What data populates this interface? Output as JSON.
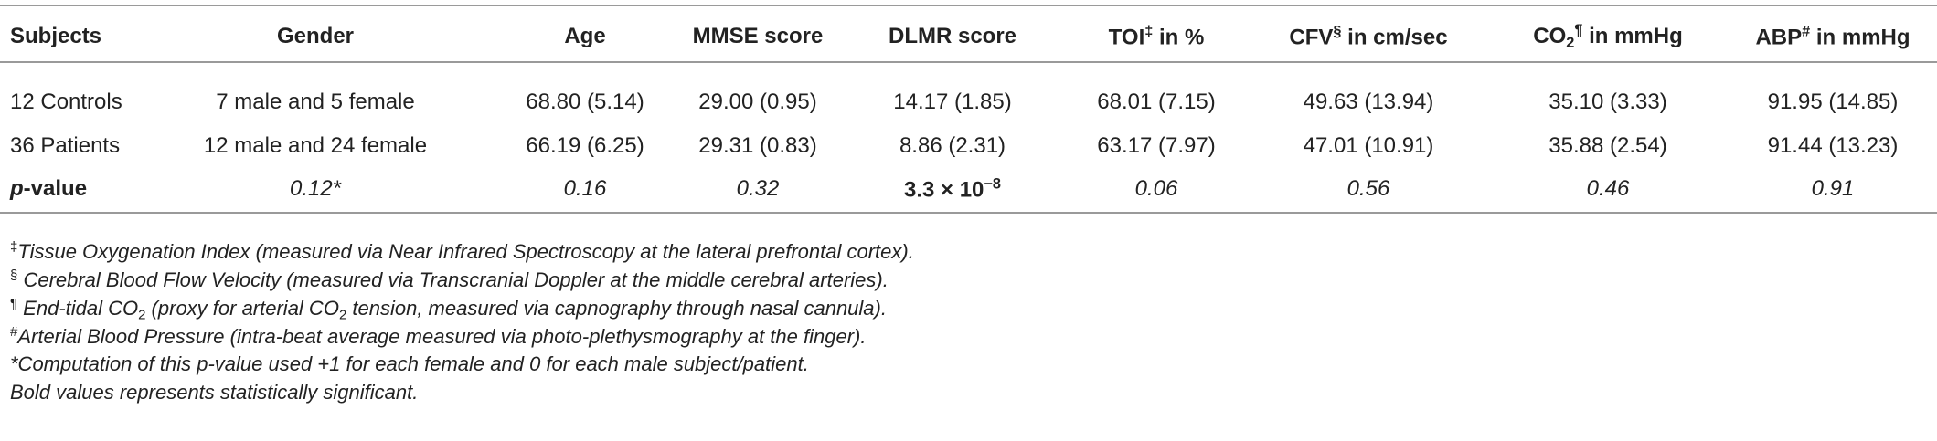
{
  "table": {
    "header": [
      [
        {
          "text": "Subjects"
        }
      ],
      [
        {
          "text": "Gender"
        }
      ],
      [
        {
          "text": "Age"
        }
      ],
      [
        {
          "text": "MMSE score"
        }
      ],
      [
        {
          "text": "DLMR score"
        }
      ],
      [
        {
          "text": "TOI"
        },
        {
          "text": "‡",
          "format": [
            "sup"
          ]
        },
        {
          "text": " in %"
        }
      ],
      [
        {
          "text": "CFV"
        },
        {
          "text": "§",
          "format": [
            "sup"
          ]
        },
        {
          "text": " in cm/sec"
        }
      ],
      [
        {
          "text": "CO"
        },
        {
          "text": "2",
          "format": [
            "sub"
          ]
        },
        {
          "text": "¶",
          "format": [
            "sup"
          ]
        },
        {
          "text": " in mmHg"
        }
      ],
      [
        {
          "text": "ABP"
        },
        {
          "text": "#",
          "format": [
            "sup"
          ]
        },
        {
          "text": " in mmHg"
        }
      ]
    ],
    "rows": [
      [
        [
          {
            "text": "12 Controls"
          }
        ],
        [
          {
            "text": "7 male and 5 female"
          }
        ],
        [
          {
            "text": "68.80 (5.14)"
          }
        ],
        [
          {
            "text": "29.00 (0.95)"
          }
        ],
        [
          {
            "text": "14.17 (1.85)"
          }
        ],
        [
          {
            "text": "68.01 (7.15)"
          }
        ],
        [
          {
            "text": "49.63 (13.94)"
          }
        ],
        [
          {
            "text": "35.10 (3.33)"
          }
        ],
        [
          {
            "text": "91.95 (14.85)"
          }
        ]
      ],
      [
        [
          {
            "text": "36 Patients"
          }
        ],
        [
          {
            "text": "12 male and 24 female"
          }
        ],
        [
          {
            "text": "66.19 (6.25)"
          }
        ],
        [
          {
            "text": "29.31 (0.83)"
          }
        ],
        [
          {
            "text": "8.86 (2.31)"
          }
        ],
        [
          {
            "text": "63.17 (7.97)"
          }
        ],
        [
          {
            "text": "47.01 (10.91)"
          }
        ],
        [
          {
            "text": "35.88 (2.54)"
          }
        ],
        [
          {
            "text": "91.44 (13.23)"
          }
        ]
      ],
      [
        [
          {
            "text": "p",
            "format": [
              "bold",
              "italic"
            ]
          },
          {
            "text": "-value",
            "format": [
              "bold"
            ]
          }
        ],
        [
          {
            "text": "0.12*",
            "format": [
              "italic"
            ]
          }
        ],
        [
          {
            "text": "0.16",
            "format": [
              "italic"
            ]
          }
        ],
        [
          {
            "text": "0.32",
            "format": [
              "italic"
            ]
          }
        ],
        [
          {
            "text": "3.3 × 10",
            "format": [
              "bold"
            ]
          },
          {
            "text": "−8",
            "format": [
              "bold",
              "sup"
            ]
          }
        ],
        [
          {
            "text": "0.06",
            "format": [
              "italic"
            ]
          }
        ],
        [
          {
            "text": "0.56",
            "format": [
              "italic"
            ]
          }
        ],
        [
          {
            "text": "0.46",
            "format": [
              "italic"
            ]
          }
        ],
        [
          {
            "text": "0.91",
            "format": [
              "italic"
            ]
          }
        ]
      ]
    ],
    "footnotes": [
      [
        {
          "text": "‡",
          "format": [
            "sup"
          ]
        },
        {
          "text": "Tissue Oxygenation Index (measured via Near Infrared Spectroscopy at the lateral prefrontal cortex).",
          "format": [
            "italic"
          ]
        }
      ],
      [
        {
          "text": "§",
          "format": [
            "sup"
          ]
        },
        {
          "text": " Cerebral Blood Flow Velocity (measured via Transcranial Doppler at the middle cerebral arteries).",
          "format": [
            "italic"
          ]
        }
      ],
      [
        {
          "text": "¶",
          "format": [
            "sup"
          ]
        },
        {
          "text": " End-tidal CO",
          "format": [
            "italic"
          ]
        },
        {
          "text": "2",
          "format": [
            "sub"
          ]
        },
        {
          "text": " (proxy for arterial CO",
          "format": [
            "italic"
          ]
        },
        {
          "text": "2",
          "format": [
            "sub"
          ]
        },
        {
          "text": " tension, measured via capnography through nasal cannula).",
          "format": [
            "italic"
          ]
        }
      ],
      [
        {
          "text": "#",
          "format": [
            "sup"
          ]
        },
        {
          "text": "Arterial Blood Pressure (intra-beat average measured via photo-plethysmography at the finger).",
          "format": [
            "italic"
          ]
        }
      ],
      [
        {
          "text": "*Computation of this p-value used +1 for each female and 0 for each male subject/patient.",
          "format": [
            "italic"
          ]
        }
      ],
      [
        {
          "text": "Bold values represents statistically significant.",
          "format": [
            "italic"
          ]
        }
      ]
    ]
  }
}
